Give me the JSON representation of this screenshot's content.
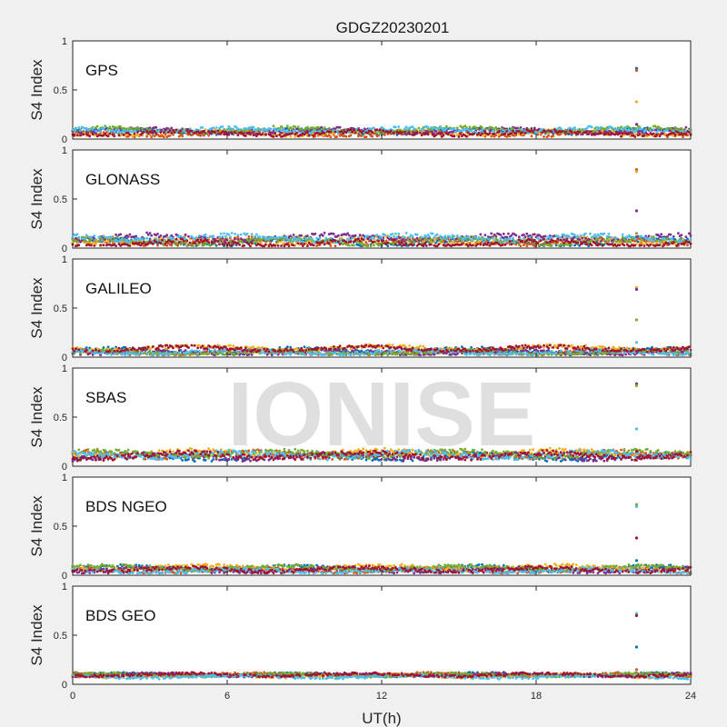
{
  "chart_data": {
    "type": "scatter",
    "title": "GDGZ20230201",
    "xlabel": "UT(h)",
    "ylabel": "S4 Index",
    "xlim": [
      0,
      24
    ],
    "ylim": [
      0,
      1
    ],
    "x_ticks": [
      "0",
      "6",
      "12",
      "18",
      "24"
    ],
    "y_ticks": [
      "0",
      "0.5",
      "1"
    ],
    "watermark": "IONISE",
    "series_colors": [
      "#0072bd",
      "#d95319",
      "#edb120",
      "#7e2f8e",
      "#77ac30",
      "#4dbeee",
      "#a2142f"
    ],
    "spike": {
      "x": 21.9,
      "values": [
        0.72,
        0.38,
        0.15
      ]
    },
    "panels": [
      {
        "label": "GPS",
        "baseline": 0.07,
        "spread": 0.06,
        "spike_top": 0.72
      },
      {
        "label": "GLONASS",
        "baseline": 0.08,
        "spread": 0.08,
        "spike_top": 0.8
      },
      {
        "label": "GALILEO",
        "baseline": 0.07,
        "spread": 0.06,
        "spike_top": 0.71
      },
      {
        "label": "SBAS",
        "baseline": 0.12,
        "spread": 0.08,
        "spike_top": 0.84
      },
      {
        "label": "BDS NGEO",
        "baseline": 0.07,
        "spread": 0.06,
        "spike_top": 0.72
      },
      {
        "label": "BDS GEO",
        "baseline": 0.09,
        "spread": 0.04,
        "spike_top": 0.72
      }
    ]
  }
}
